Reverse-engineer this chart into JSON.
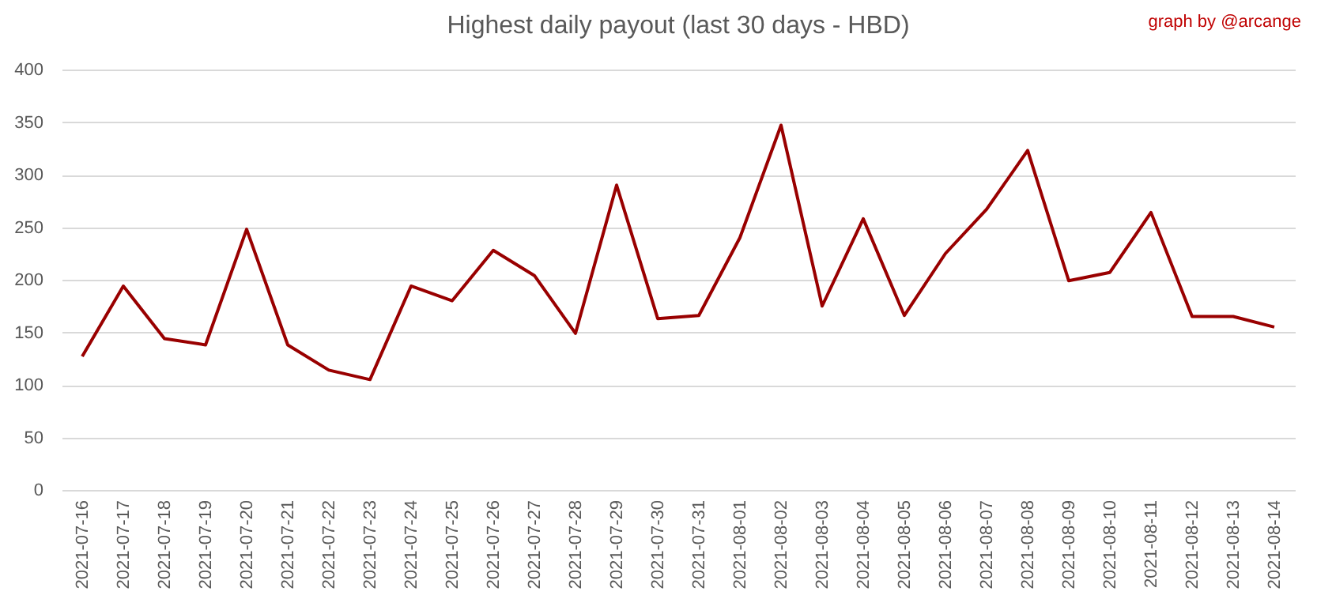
{
  "chart_data": {
    "type": "line",
    "title": "Highest daily payout (last 30 days - HBD)",
    "annotations": [
      "graph by @arcange"
    ],
    "categories": [
      "2021-07-16",
      "2021-07-17",
      "2021-07-18",
      "2021-07-19",
      "2021-07-20",
      "2021-07-21",
      "2021-07-22",
      "2021-07-23",
      "2021-07-24",
      "2021-07-25",
      "2021-07-26",
      "2021-07-27",
      "2021-07-28",
      "2021-07-29",
      "2021-07-30",
      "2021-07-31",
      "2021-08-01",
      "2021-08-02",
      "2021-08-03",
      "2021-08-04",
      "2021-08-05",
      "2021-08-06",
      "2021-08-07",
      "2021-08-08",
      "2021-08-09",
      "2021-08-10",
      "2021-08-11",
      "2021-08-12",
      "2021-08-13",
      "2021-08-14"
    ],
    "series": [
      {
        "color": "#990000",
        "values": [
          127,
          194,
          144,
          138,
          248,
          138,
          114,
          105,
          194,
          180,
          228,
          204,
          149,
          290,
          163,
          166,
          240,
          347,
          175,
          258,
          166,
          225,
          267,
          323,
          199,
          207,
          264,
          165,
          165,
          155
        ]
      }
    ],
    "ylim": [
      0,
      400
    ],
    "yticks": [
      0,
      50,
      100,
      150,
      200,
      250,
      300,
      350,
      400
    ],
    "grid": "y",
    "marker": "none",
    "line_style": "solid"
  }
}
